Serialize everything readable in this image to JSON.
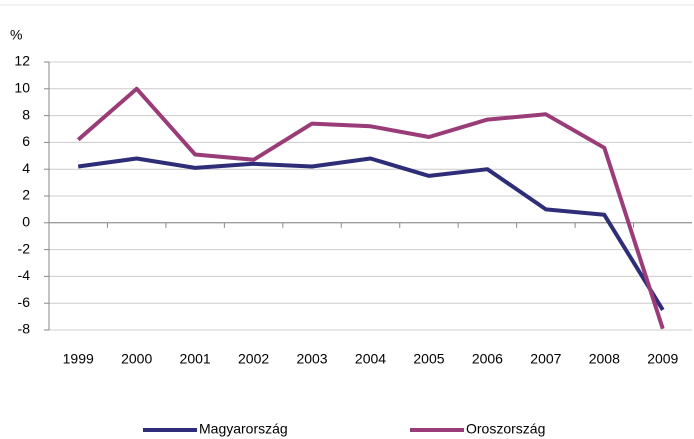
{
  "chart_data": {
    "type": "line",
    "y_unit": "%",
    "categories": [
      "1999",
      "2000",
      "2001",
      "2002",
      "2003",
      "2004",
      "2005",
      "2006",
      "2007",
      "2008",
      "2009"
    ],
    "series": [
      {
        "name": "Magyarország",
        "color": "#2e2d78",
        "values": [
          4.2,
          4.8,
          4.1,
          4.4,
          4.2,
          4.8,
          3.5,
          4.0,
          1.0,
          0.6,
          -6.5
        ]
      },
      {
        "name": "Oroszország",
        "color": "#993c78",
        "values": [
          6.2,
          10.0,
          5.1,
          4.7,
          7.4,
          7.2,
          6.4,
          7.7,
          8.1,
          5.6,
          -7.9
        ]
      }
    ],
    "ylim": [
      -8,
      12
    ],
    "yticks": [
      -8,
      -6,
      -4,
      -2,
      0,
      2,
      4,
      6,
      8,
      10,
      12
    ],
    "grid": true
  }
}
